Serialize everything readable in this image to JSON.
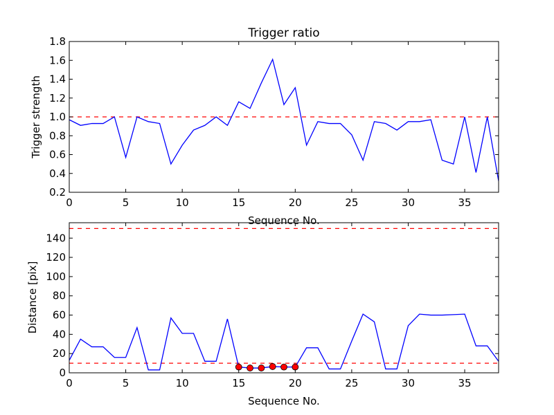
{
  "chart_data": [
    {
      "type": "line",
      "title": "Trigger ratio",
      "xlabel": "Sequence No.",
      "ylabel": "Trigger strength",
      "xlim": [
        0,
        38
      ],
      "ylim": [
        0.2,
        1.8
      ],
      "xticks": [
        0,
        5,
        10,
        15,
        20,
        25,
        30,
        35
      ],
      "yticks": [
        0.2,
        0.4,
        0.6,
        0.8,
        1.0,
        1.2,
        1.4,
        1.6,
        1.8
      ],
      "ytick_labels": [
        "0.2",
        "0.4",
        "0.6",
        "0.8",
        "1.0",
        "1.2",
        "1.4",
        "1.6",
        "1.8"
      ],
      "x": [
        0,
        1,
        2,
        3,
        4,
        5,
        6,
        7,
        8,
        9,
        10,
        11,
        12,
        13,
        14,
        15,
        16,
        17,
        18,
        19,
        20,
        21,
        22,
        23,
        24,
        25,
        26,
        27,
        28,
        29,
        30,
        31,
        32,
        33,
        34,
        35,
        36,
        37,
        38
      ],
      "series": [
        {
          "name": "trigger strength",
          "color": "#0000ff",
          "values": [
            0.97,
            0.91,
            0.93,
            0.93,
            1.0,
            0.57,
            1.0,
            0.95,
            0.93,
            0.5,
            0.7,
            0.86,
            0.91,
            1.0,
            0.91,
            1.16,
            1.09,
            1.36,
            1.61,
            1.13,
            1.31,
            0.7,
            0.95,
            0.93,
            0.93,
            0.81,
            0.54,
            0.95,
            0.93,
            0.86,
            0.95,
            0.95,
            0.97,
            0.54,
            0.5,
            1.0,
            0.41,
            1.0,
            0.32
          ]
        }
      ],
      "hlines": [
        {
          "y": 1.0,
          "color": "#ff0000",
          "style": "dashed"
        }
      ],
      "highlight": null
    },
    {
      "type": "line",
      "title": "",
      "xlabel": "Sequence No.",
      "ylabel": "Distance [pix]",
      "xlim": [
        0,
        38
      ],
      "ylim": [
        0,
        156
      ],
      "xticks": [
        0,
        5,
        10,
        15,
        20,
        25,
        30,
        35
      ],
      "yticks": [
        0,
        20,
        40,
        60,
        80,
        100,
        120,
        140
      ],
      "ytick_labels": [
        "0",
        "20",
        "40",
        "60",
        "80",
        "100",
        "120",
        "140"
      ],
      "x": [
        0,
        1,
        2,
        3,
        4,
        5,
        6,
        7,
        8,
        9,
        10,
        11,
        12,
        13,
        14,
        15,
        16,
        17,
        18,
        19,
        20,
        21,
        22,
        23,
        24,
        25,
        26,
        27,
        28,
        29,
        30,
        31,
        32,
        33,
        34,
        35,
        36,
        37,
        38
      ],
      "series": [
        {
          "name": "distance",
          "color": "#0000ff",
          "values": [
            13,
            35,
            27,
            27,
            16,
            16,
            47,
            3,
            3,
            57,
            41,
            41,
            12,
            12,
            56,
            6,
            5,
            5,
            6.5,
            6,
            6,
            26,
            26,
            4,
            4,
            33,
            61,
            53,
            4,
            4,
            49,
            61,
            60,
            60,
            60.5,
            61,
            28,
            28,
            12
          ]
        }
      ],
      "hlines": [
        {
          "y": 150,
          "color": "#ff0000",
          "style": "dashed"
        },
        {
          "y": 10,
          "color": "#ff0000",
          "style": "dashed"
        }
      ],
      "highlight": {
        "x": [
          15,
          16,
          17,
          18,
          19,
          20
        ],
        "color": "#ff0000"
      }
    }
  ]
}
